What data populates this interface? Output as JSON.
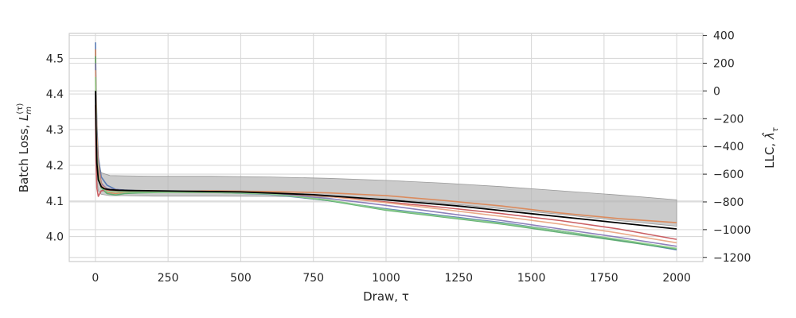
{
  "chart_data": {
    "type": "line",
    "xlabel": "Draw, τ",
    "ylabel_left_text": "Batch Loss, ",
    "ylabel_left_symbol": "L",
    "ylabel_left_sup": "(τ)",
    "ylabel_left_sub": "m",
    "ylabel_right_text": "LLC, ",
    "ylabel_right_symbol": "λ̂",
    "ylabel_right_sub": "τ",
    "xlim": [
      -90,
      2090
    ],
    "ylim_left": [
      3.93,
      4.57
    ],
    "ylim_right": [
      -1230,
      415
    ],
    "x_ticks": [
      0,
      250,
      500,
      750,
      1000,
      1250,
      1500,
      1750,
      2000
    ],
    "y_ticks_left": [
      4.0,
      4.1,
      4.2,
      4.3,
      4.4,
      4.5
    ],
    "y_ticks_left_labels": [
      "4.0",
      "4.1",
      "4.2",
      "4.3",
      "4.4",
      "4.5"
    ],
    "y_ticks_right": [
      400,
      200,
      0,
      -200,
      -400,
      -600,
      -800,
      -1000,
      -1200
    ],
    "y_ticks_right_labels": [
      "400",
      "200",
      "0",
      "−200",
      "−400",
      "−600",
      "−800",
      "−1000",
      "−1200"
    ],
    "grid": true,
    "series": [
      {
        "color": "#4c72b0",
        "axis": "right",
        "x": [
          0,
          2,
          5,
          10,
          20,
          40,
          70,
          100,
          150,
          250,
          400,
          600,
          800,
          1000,
          1200,
          1400,
          1600,
          1800,
          2000
        ],
        "values": [
          350,
          50,
          -250,
          -480,
          -620,
          -680,
          -710,
          -715,
          -720,
          -725,
          -730,
          -745,
          -790,
          -850,
          -900,
          -950,
          -1010,
          -1075,
          -1145
        ]
      },
      {
        "color": "#dd8452",
        "axis": "right",
        "x": [
          0,
          2,
          5,
          10,
          20,
          40,
          70,
          100,
          150,
          250,
          400,
          600,
          800,
          1000,
          1200,
          1400,
          1600,
          1800,
          2000
        ],
        "values": [
          300,
          20,
          -300,
          -520,
          -660,
          -730,
          -740,
          -730,
          -725,
          -725,
          -720,
          -725,
          -735,
          -755,
          -790,
          -830,
          -880,
          -920,
          -950
        ]
      },
      {
        "color": "#55a868",
        "axis": "right",
        "x": [
          0,
          2,
          5,
          10,
          20,
          40,
          70,
          100,
          150,
          250,
          400,
          600,
          800,
          1000,
          1200,
          1400,
          1600,
          1800,
          2000
        ],
        "values": [
          250,
          -50,
          -400,
          -600,
          -700,
          -740,
          -750,
          -740,
          -735,
          -730,
          -730,
          -738,
          -790,
          -860,
          -910,
          -960,
          -1020,
          -1080,
          -1140
        ]
      },
      {
        "color": "#c44e52",
        "axis": "right",
        "x": [
          0,
          2,
          5,
          10,
          20,
          40,
          70,
          100,
          150,
          250,
          400,
          600,
          800,
          1000,
          1200,
          1400,
          1600,
          1800,
          2000
        ],
        "values": [
          -100,
          -500,
          -700,
          -760,
          -720,
          -715,
          -718,
          -720,
          -722,
          -725,
          -725,
          -735,
          -760,
          -800,
          -840,
          -885,
          -935,
          -995,
          -1070
        ]
      },
      {
        "color": "#8172b3",
        "axis": "right",
        "x": [
          0,
          2,
          5,
          10,
          20,
          40,
          70,
          100,
          150,
          250,
          400,
          600,
          800,
          1000,
          1200,
          1400,
          1600,
          1800,
          2000
        ],
        "values": [
          200,
          -100,
          -380,
          -560,
          -670,
          -705,
          -712,
          -716,
          -720,
          -724,
          -726,
          -740,
          -775,
          -825,
          -880,
          -935,
          -995,
          -1055,
          -1120
        ]
      },
      {
        "color": "#e8a27d",
        "axis": "right",
        "x": [
          0,
          2,
          5,
          10,
          20,
          40,
          70,
          100,
          150,
          250,
          400,
          600,
          800,
          1000,
          1200,
          1400,
          1600,
          1800,
          2000
        ],
        "values": [
          150,
          -150,
          -420,
          -580,
          -680,
          -710,
          -715,
          -718,
          -720,
          -722,
          -724,
          -732,
          -760,
          -805,
          -855,
          -905,
          -960,
          -1025,
          -1095
        ]
      },
      {
        "color": "#8dcf8a",
        "axis": "right",
        "x": [
          0,
          2,
          5,
          10,
          20,
          40,
          70,
          100,
          150,
          250,
          400,
          600,
          800,
          1000,
          1200,
          1400,
          1600,
          1800,
          2000
        ],
        "values": [
          100,
          -200,
          -450,
          -610,
          -700,
          -725,
          -728,
          -728,
          -728,
          -730,
          -732,
          -742,
          -785,
          -855,
          -905,
          -955,
          -1010,
          -1070,
          -1135
        ]
      },
      {
        "color": "#000000",
        "axis": "right",
        "x": [
          0,
          2,
          5,
          10,
          20,
          30,
          50,
          80,
          120,
          200,
          300,
          500,
          750,
          1000,
          1250,
          1500,
          1750,
          2000
        ],
        "values": [
          0,
          -250,
          -520,
          -640,
          -690,
          -705,
          -712,
          -716,
          -718,
          -720,
          -723,
          -728,
          -748,
          -785,
          -830,
          -885,
          -940,
          -995
        ]
      }
    ],
    "band": {
      "color": "#b5b5b5",
      "axis": "right",
      "x": [
        0,
        2,
        5,
        10,
        20,
        50,
        100,
        200,
        400,
        600,
        800,
        1000,
        1200,
        1400,
        1600,
        1800,
        2000
      ],
      "lower": [
        -200,
        -500,
        -640,
        -720,
        -745,
        -755,
        -755,
        -758,
        -758,
        -760,
        -765,
        -780,
        -810,
        -850,
        -890,
        -935,
        -975
      ],
      "upper": [
        300,
        0,
        -350,
        -520,
        -590,
        -610,
        -612,
        -615,
        -615,
        -620,
        -630,
        -645,
        -665,
        -690,
        -720,
        -750,
        -785
      ]
    }
  }
}
